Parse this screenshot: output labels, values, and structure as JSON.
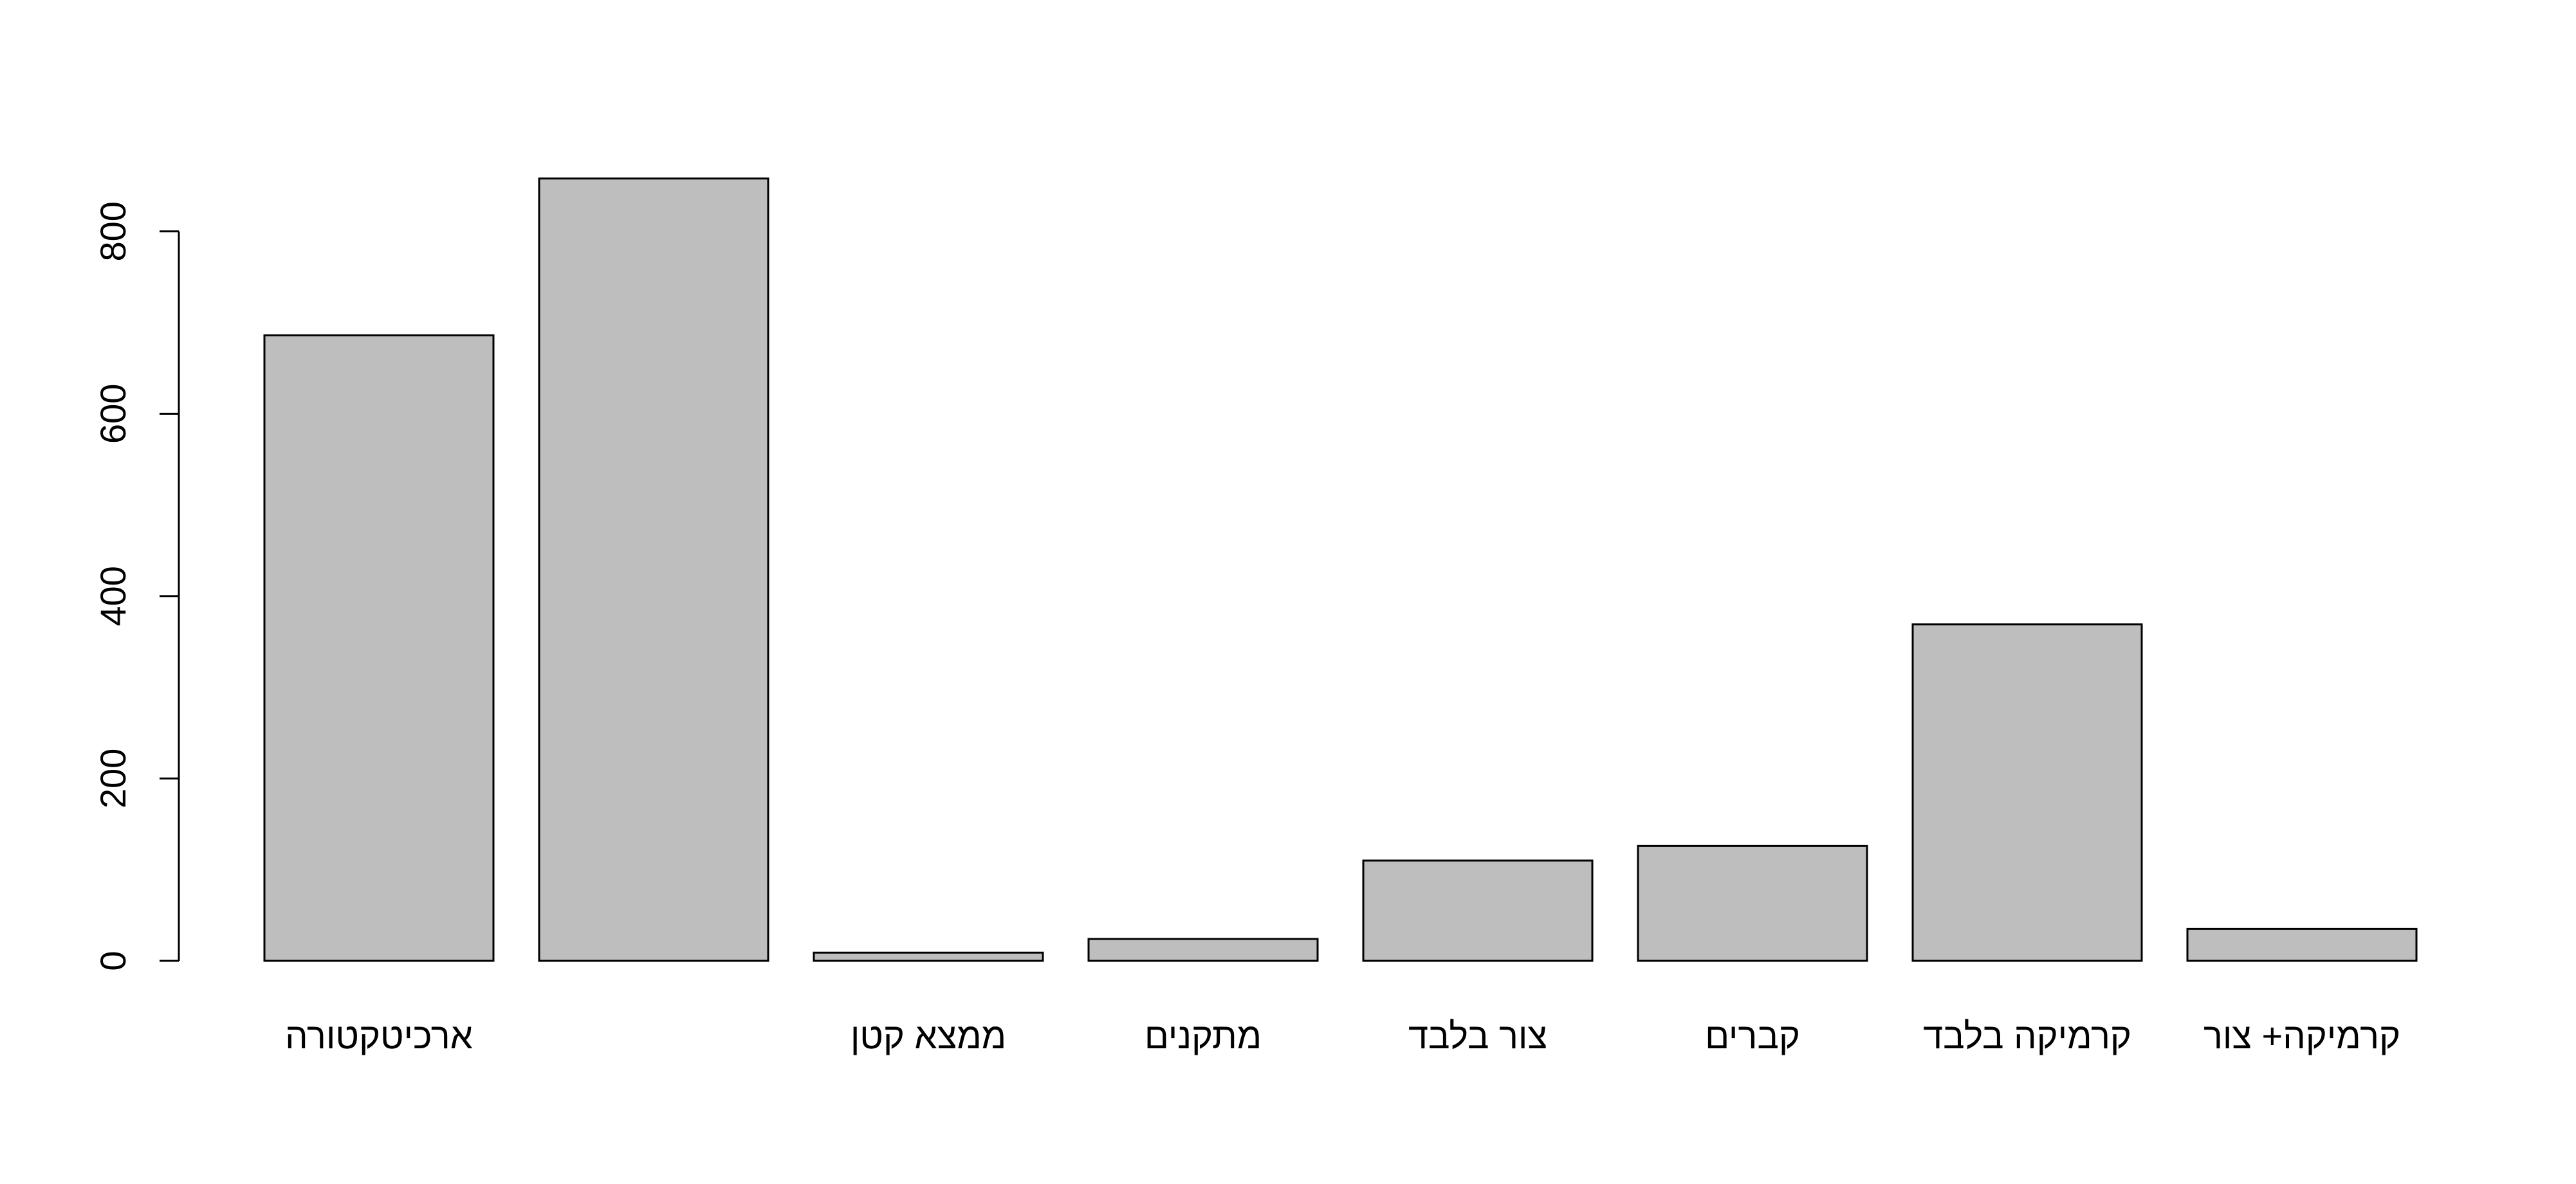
{
  "chart_data": {
    "type": "bar",
    "categories": [
      "ארכיטקטורה",
      "",
      "ממצא קטן",
      "מתקנים",
      "צור בלבד",
      "קברים",
      "קרמיקה בלבד",
      "קרמיקה+ צור"
    ],
    "values": [
      686,
      858,
      9,
      24,
      110,
      126,
      369,
      35
    ],
    "yticks": [
      0,
      200,
      400,
      600,
      800
    ],
    "ylim": [
      0,
      858
    ],
    "title": "",
    "xlabel": "",
    "ylabel": "",
    "grid": false,
    "bar_color": "#bebebe",
    "edge_color": "#000000"
  }
}
